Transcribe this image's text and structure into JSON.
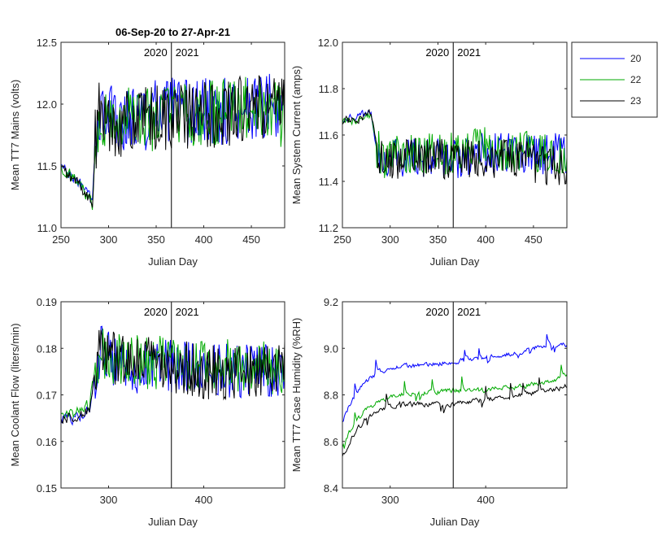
{
  "chart_data": [
    {
      "type": "line",
      "title": "06-Sep-20 to 27-Apr-21",
      "xlabel": "Julian Day",
      "ylabel": "Mean TT7 Mains  (volts)",
      "xlim": [
        250,
        485
      ],
      "ylim": [
        11.0,
        12.5
      ],
      "xticks": [
        250,
        300,
        350,
        400,
        450
      ],
      "yticks": [
        11.0,
        11.5,
        12.0,
        12.5
      ],
      "ytick_labels": [
        "11.0",
        "11.5",
        "12.0",
        "12.5"
      ],
      "year_divider": 366,
      "year_labels": [
        "2020",
        "2021"
      ],
      "series": [
        {
          "name": "20",
          "color": "#0000ff",
          "x": [
            250,
            260,
            270,
            283,
            286,
            290,
            300,
            320,
            340,
            366,
            380,
            400,
            420,
            440,
            460,
            485
          ],
          "y": [
            11.5,
            11.42,
            11.36,
            11.2,
            11.7,
            11.95,
            11.9,
            11.88,
            11.9,
            11.95,
            11.92,
            11.93,
            11.95,
            11.97,
            12.0,
            11.95
          ]
        },
        {
          "name": "22",
          "color": "#00aa00",
          "x": [
            250,
            260,
            270,
            283,
            286,
            290,
            300,
            320,
            340,
            366,
            380,
            400,
            420,
            440,
            460,
            485
          ],
          "y": [
            11.5,
            11.42,
            11.36,
            11.2,
            11.7,
            11.92,
            11.88,
            11.87,
            11.88,
            11.92,
            11.9,
            11.9,
            11.93,
            11.95,
            11.97,
            11.92
          ]
        },
        {
          "name": "23",
          "color": "#000000",
          "x": [
            250,
            260,
            270,
            283,
            286,
            290,
            300,
            320,
            340,
            366,
            380,
            400,
            420,
            440,
            460,
            485
          ],
          "y": [
            11.48,
            11.4,
            11.35,
            11.18,
            11.68,
            11.9,
            11.86,
            11.85,
            11.86,
            11.9,
            11.9,
            11.9,
            11.92,
            11.95,
            11.97,
            11.95
          ]
        }
      ]
    },
    {
      "type": "line",
      "title": "",
      "xlabel": "Julian Day",
      "ylabel": "Mean System Current (amps)",
      "xlim": [
        250,
        485
      ],
      "ylim": [
        11.2,
        12.0
      ],
      "xticks": [
        250,
        300,
        350,
        400,
        450
      ],
      "yticks": [
        11.2,
        11.4,
        11.6,
        11.8,
        12.0
      ],
      "ytick_labels": [
        "11.2",
        "11.4",
        "11.6",
        "11.8",
        "12.0"
      ],
      "year_divider": 366,
      "year_labels": [
        "2020",
        "2021"
      ],
      "series": [
        {
          "name": "20",
          "color": "#0000ff",
          "x": [
            250,
            265,
            280,
            286,
            292,
            310,
            330,
            366,
            390,
            420,
            450,
            485
          ],
          "y": [
            11.67,
            11.68,
            11.7,
            11.55,
            11.48,
            11.5,
            11.5,
            11.5,
            11.52,
            11.52,
            11.52,
            11.52
          ]
        },
        {
          "name": "22",
          "color": "#00aa00",
          "x": [
            250,
            265,
            280,
            286,
            292,
            310,
            330,
            366,
            390,
            420,
            450,
            485
          ],
          "y": [
            11.66,
            11.66,
            11.68,
            11.55,
            11.5,
            11.52,
            11.52,
            11.52,
            11.55,
            11.53,
            11.53,
            11.52
          ]
        },
        {
          "name": "23",
          "color": "#000000",
          "x": [
            250,
            265,
            280,
            286,
            292,
            310,
            330,
            366,
            390,
            420,
            450,
            485
          ],
          "y": [
            11.66,
            11.67,
            11.69,
            11.55,
            11.48,
            11.5,
            11.5,
            11.5,
            11.5,
            11.5,
            11.48,
            11.46
          ]
        }
      ]
    },
    {
      "type": "line",
      "title": "",
      "xlabel": "Julian Day",
      "ylabel": "Mean Coolant Flow (liters/min)",
      "xlim": [
        250,
        485
      ],
      "ylim": [
        0.15,
        0.19
      ],
      "xticks": [
        300,
        400
      ],
      "yticks": [
        0.15,
        0.16,
        0.17,
        0.18,
        0.19
      ],
      "ytick_labels": [
        "0.15",
        "0.16",
        "0.17",
        "0.18",
        "0.19"
      ],
      "year_divider": 366,
      "year_labels": [
        "2020",
        "2021"
      ],
      "series": [
        {
          "name": "20",
          "color": "#0000ff",
          "x": [
            250,
            265,
            280,
            286,
            292,
            310,
            340,
            366,
            400,
            440,
            485
          ],
          "y": [
            0.165,
            0.165,
            0.167,
            0.175,
            0.18,
            0.177,
            0.176,
            0.176,
            0.176,
            0.175,
            0.175
          ]
        },
        {
          "name": "22",
          "color": "#00aa00",
          "x": [
            250,
            265,
            280,
            286,
            292,
            310,
            340,
            366,
            400,
            440,
            485
          ],
          "y": [
            0.166,
            0.166,
            0.168,
            0.176,
            0.179,
            0.178,
            0.177,
            0.177,
            0.176,
            0.176,
            0.176
          ]
        },
        {
          "name": "23",
          "color": "#000000",
          "x": [
            250,
            265,
            280,
            286,
            292,
            310,
            340,
            366,
            400,
            440,
            485
          ],
          "y": [
            0.165,
            0.165,
            0.167,
            0.176,
            0.179,
            0.177,
            0.177,
            0.176,
            0.175,
            0.175,
            0.176
          ]
        }
      ]
    },
    {
      "type": "line",
      "title": "",
      "xlabel": "Julian Day",
      "ylabel": "Mean TT7 Case Humidity (%RH)",
      "xlim": [
        250,
        485
      ],
      "ylim": [
        8.4,
        9.2
      ],
      "xticks": [
        300,
        400
      ],
      "yticks": [
        8.4,
        8.6,
        8.8,
        9.0,
        9.2
      ],
      "ytick_labels": [
        "8.4",
        "8.6",
        "8.8",
        "9.0",
        "9.2"
      ],
      "year_divider": 366,
      "year_labels": [
        "2020",
        "2021"
      ],
      "series": [
        {
          "name": "20",
          "color": "#0000ff",
          "x": [
            250,
            260,
            275,
            290,
            310,
            340,
            366,
            400,
            440,
            470,
            485
          ],
          "y": [
            8.68,
            8.78,
            8.86,
            8.9,
            8.92,
            8.93,
            8.94,
            8.96,
            8.99,
            9.02,
            9.02
          ]
        },
        {
          "name": "22",
          "color": "#00aa00",
          "x": [
            250,
            260,
            275,
            290,
            310,
            340,
            366,
            400,
            440,
            470,
            485
          ],
          "y": [
            8.58,
            8.66,
            8.74,
            8.78,
            8.8,
            8.81,
            8.82,
            8.82,
            8.84,
            8.86,
            8.89
          ]
        },
        {
          "name": "23",
          "color": "#000000",
          "x": [
            250,
            260,
            275,
            290,
            310,
            340,
            366,
            400,
            440,
            470,
            485
          ],
          "y": [
            8.53,
            8.62,
            8.7,
            8.74,
            8.76,
            8.76,
            8.76,
            8.78,
            8.8,
            8.82,
            8.84
          ]
        }
      ]
    }
  ],
  "legend": {
    "entries": [
      {
        "label": "20",
        "color": "#0000ff"
      },
      {
        "label": "22",
        "color": "#00aa00"
      },
      {
        "label": "23",
        "color": "#000000"
      }
    ]
  }
}
